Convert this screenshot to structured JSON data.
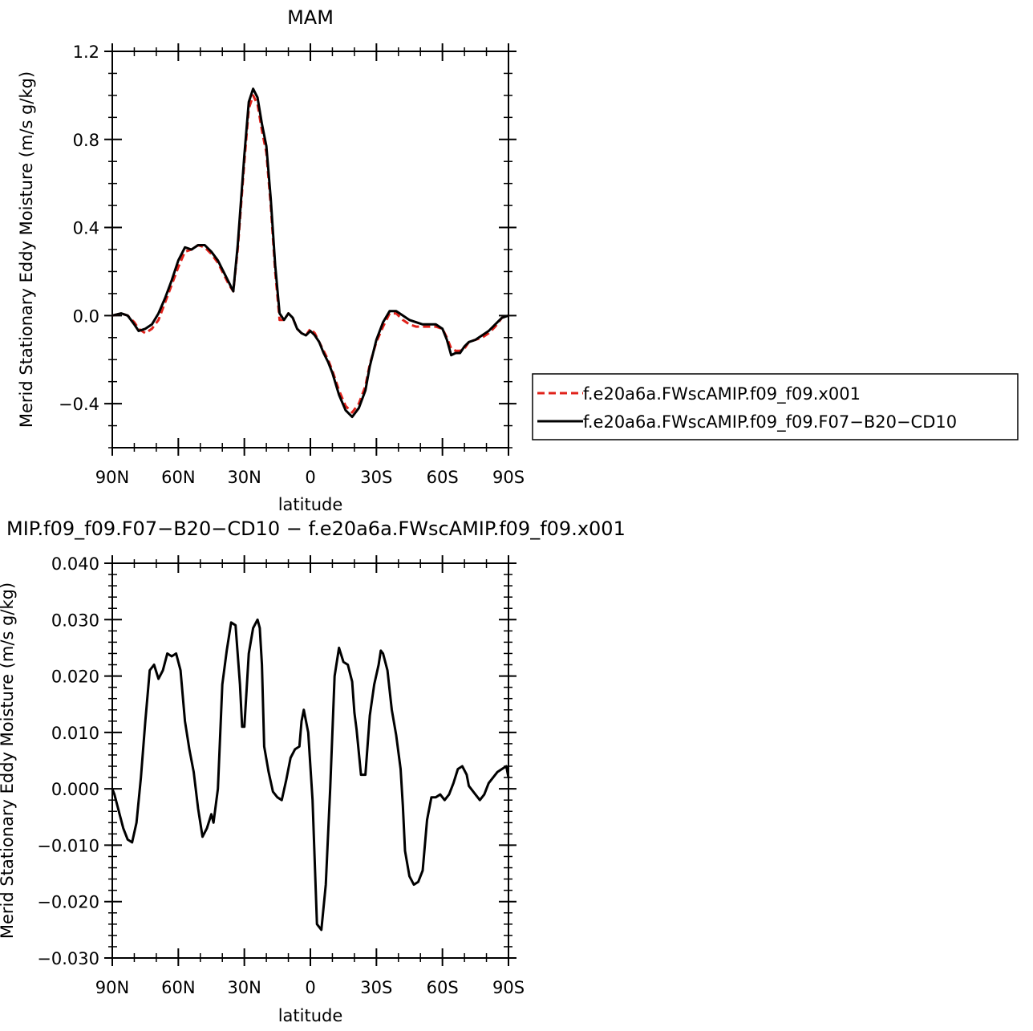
{
  "chart_data": [
    {
      "type": "line",
      "title": "MAM",
      "xlabel": "latitude",
      "ylabel": "Merid Stationary Eddy Moisture (m/s g/kg)",
      "x_ticks": [
        "90N",
        "60N",
        "30N",
        "0",
        "30S",
        "60S",
        "90S"
      ],
      "x_tick_values": [
        90,
        60,
        30,
        0,
        -30,
        -60,
        -90
      ],
      "y_ticks": [
        "−0.4",
        "0.0",
        "0.4",
        "0.8",
        "1.2"
      ],
      "y_tick_values": [
        -0.4,
        0.0,
        0.4,
        0.8,
        1.2
      ],
      "xlim": [
        90,
        -90
      ],
      "ylim": [
        -0.6,
        1.2
      ],
      "grid": false,
      "legend_placement": "right, outside",
      "series": [
        {
          "name": "f.e20a6a.FWscAMIP.f09_f09.x001",
          "color": "#e0211a",
          "dash": "dashed",
          "x": [
            90,
            86,
            83,
            80,
            78,
            75,
            72,
            69,
            66,
            63,
            60,
            57,
            54,
            51,
            48,
            45,
            42,
            40,
            37,
            35,
            33,
            30,
            28,
            26,
            24,
            22,
            20,
            18,
            16,
            14,
            12,
            10,
            8,
            6,
            4,
            2,
            0,
            -2,
            -4,
            -6,
            -8,
            -10,
            -13,
            -16,
            -19,
            -22,
            -25,
            -27,
            -30,
            -33,
            -36,
            -39,
            -42,
            -45,
            -48,
            -51,
            -54,
            -57,
            -60,
            -62,
            -64,
            -66,
            -68,
            -70,
            -72,
            -75,
            -78,
            -81,
            -84,
            -87,
            -90
          ],
          "values": [
            0.0,
            0.01,
            0.0,
            -0.03,
            -0.06,
            -0.08,
            -0.06,
            -0.02,
            0.06,
            0.14,
            0.22,
            0.29,
            0.3,
            0.32,
            0.31,
            0.28,
            0.24,
            0.2,
            0.14,
            0.11,
            0.3,
            0.7,
            0.94,
            1.0,
            0.96,
            0.84,
            0.74,
            0.5,
            0.2,
            -0.02,
            -0.02,
            0.01,
            -0.01,
            -0.06,
            -0.08,
            -0.09,
            -0.06,
            -0.08,
            -0.12,
            -0.16,
            -0.2,
            -0.25,
            -0.34,
            -0.41,
            -0.44,
            -0.4,
            -0.32,
            -0.22,
            -0.12,
            -0.05,
            0.01,
            0.01,
            -0.02,
            -0.04,
            -0.05,
            -0.05,
            -0.05,
            -0.05,
            -0.06,
            -0.1,
            -0.15,
            -0.16,
            -0.16,
            -0.15,
            -0.12,
            -0.11,
            -0.1,
            -0.08,
            -0.05,
            -0.01,
            0.0
          ]
        },
        {
          "name": "f.e20a6a.FWscAMIP.f09_f09.F07−B20−CD10",
          "color": "#000000",
          "dash": "solid",
          "x": [
            90,
            86,
            83,
            80,
            78,
            75,
            72,
            69,
            66,
            63,
            60,
            57,
            54,
            51,
            48,
            45,
            42,
            40,
            37,
            35,
            33,
            30,
            28,
            26,
            24,
            22,
            20,
            18,
            16,
            14,
            12,
            10,
            8,
            6,
            4,
            2,
            0,
            -2,
            -4,
            -6,
            -8,
            -10,
            -13,
            -16,
            -19,
            -22,
            -25,
            -27,
            -30,
            -33,
            -36,
            -39,
            -42,
            -45,
            -48,
            -51,
            -54,
            -57,
            -60,
            -62,
            -64,
            -66,
            -68,
            -70,
            -72,
            -75,
            -78,
            -81,
            -84,
            -87,
            -90
          ],
          "values": [
            0.0,
            0.01,
            0.0,
            -0.04,
            -0.07,
            -0.06,
            -0.04,
            0.01,
            0.08,
            0.16,
            0.25,
            0.31,
            0.3,
            0.32,
            0.32,
            0.29,
            0.25,
            0.21,
            0.15,
            0.11,
            0.32,
            0.73,
            0.97,
            1.03,
            0.99,
            0.87,
            0.77,
            0.53,
            0.23,
            0.01,
            -0.02,
            0.01,
            -0.01,
            -0.06,
            -0.08,
            -0.09,
            -0.07,
            -0.09,
            -0.12,
            -0.17,
            -0.21,
            -0.26,
            -0.36,
            -0.43,
            -0.46,
            -0.42,
            -0.34,
            -0.23,
            -0.11,
            -0.03,
            0.02,
            0.02,
            0.0,
            -0.02,
            -0.03,
            -0.04,
            -0.04,
            -0.04,
            -0.06,
            -0.11,
            -0.18,
            -0.17,
            -0.17,
            -0.14,
            -0.12,
            -0.11,
            -0.09,
            -0.07,
            -0.04,
            -0.01,
            0.0
          ]
        }
      ]
    },
    {
      "type": "line",
      "title": "MIP.f09_f09.F07−B20−CD10 − f.e20a6a.FWscAMIP.f09_f09.x001",
      "xlabel": "latitude",
      "ylabel": "Merid Stationary Eddy Moisture (m/s g/kg)",
      "x_ticks": [
        "90N",
        "60N",
        "30N",
        "0",
        "30S",
        "60S",
        "90S"
      ],
      "x_tick_values": [
        90,
        60,
        30,
        0,
        -30,
        -60,
        -90
      ],
      "y_ticks": [
        "−0.030",
        "−0.020",
        "−0.010",
        "0.000",
        "0.010",
        "0.020",
        "0.030",
        "0.040"
      ],
      "y_tick_values": [
        -0.03,
        -0.02,
        -0.01,
        0.0,
        0.01,
        0.02,
        0.03,
        0.04
      ],
      "xlim": [
        90,
        -90
      ],
      "ylim": [
        -0.03,
        0.04
      ],
      "grid": false,
      "series": [
        {
          "color": "#000000",
          "dash": "solid",
          "x": [
            90,
            89,
            87,
            85,
            83,
            81,
            79,
            77,
            75,
            73,
            71,
            69,
            67,
            65,
            63,
            61,
            59,
            57,
            55,
            53,
            51,
            49,
            47,
            45,
            44,
            42,
            40,
            38,
            36,
            34,
            32,
            31,
            30,
            28,
            26,
            24,
            23,
            22,
            21,
            19,
            17,
            15,
            13,
            11,
            9,
            7,
            5,
            4,
            3,
            1,
            -1,
            -3,
            -5,
            -7,
            -9,
            -11,
            -13,
            -15,
            -17,
            -19,
            -20,
            -21,
            -23,
            -25,
            -27,
            -29,
            -31,
            -32,
            -33,
            -35,
            -37,
            -39,
            -41,
            -42,
            -43,
            -45,
            -47,
            -49,
            -51,
            -53,
            -55,
            -57,
            -59,
            -61,
            -63,
            -65,
            -67,
            -69,
            -71,
            -72,
            -73,
            -75,
            -77,
            -79,
            -81,
            -83,
            -85,
            -87,
            -89,
            -90
          ],
          "values": [
            0.0,
            -0.001,
            -0.004,
            -0.007,
            -0.009,
            -0.0095,
            -0.006,
            0.002,
            0.012,
            0.021,
            0.022,
            0.0195,
            0.021,
            0.024,
            0.0235,
            0.024,
            0.021,
            0.012,
            0.007,
            0.003,
            -0.0035,
            -0.0085,
            -0.007,
            -0.0045,
            -0.006,
            0.0,
            0.0185,
            0.0245,
            0.0295,
            0.029,
            0.0185,
            0.011,
            0.011,
            0.024,
            0.0285,
            0.03,
            0.0285,
            0.022,
            0.0075,
            0.003,
            -0.0005,
            -0.0015,
            -0.002,
            0.0015,
            0.0055,
            0.007,
            0.0075,
            0.012,
            0.014,
            0.01,
            -0.002,
            -0.024,
            -0.025,
            -0.017,
            0.0,
            0.02,
            0.025,
            0.0225,
            0.022,
            0.019,
            0.0135,
            0.0105,
            0.0025,
            0.0025,
            0.013,
            0.0185,
            0.022,
            0.0245,
            0.024,
            0.021,
            0.014,
            0.0095,
            0.0035,
            -0.003,
            -0.011,
            -0.0155,
            -0.017,
            -0.0165,
            -0.0145,
            -0.0055,
            -0.0015,
            -0.0015,
            -0.001,
            -0.002,
            -0.001,
            0.001,
            0.0035,
            0.004,
            0.0025,
            0.0005,
            0.0,
            -0.001,
            -0.002,
            -0.001,
            0.001,
            0.002,
            0.003,
            0.0035,
            0.004,
            0.002
          ]
        }
      ]
    }
  ]
}
